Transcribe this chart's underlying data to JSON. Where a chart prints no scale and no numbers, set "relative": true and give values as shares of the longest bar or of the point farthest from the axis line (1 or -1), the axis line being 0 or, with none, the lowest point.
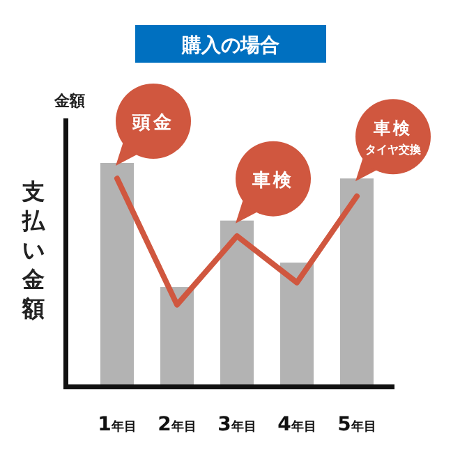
{
  "chart_data": {
    "type": "bar",
    "title": "購入の場合",
    "ylabel": "支払い金額",
    "relative": true,
    "categories": [
      "1年目",
      "2年目",
      "3年目",
      "4年目",
      "5年目"
    ],
    "series": [
      {
        "color": "#b3b3b3",
        "values": [
          1,
          0.44,
          0.74,
          0.55,
          0.93
        ]
      },
      {
        "type": "line",
        "color": "#d0573f",
        "values": [
          0.93,
          0.36,
          0.67,
          0.46,
          0.85
        ]
      }
    ],
    "annotations": [
      "金額",
      "頭金",
      "車検",
      "車検",
      "タイヤ交換"
    ]
  }
}
